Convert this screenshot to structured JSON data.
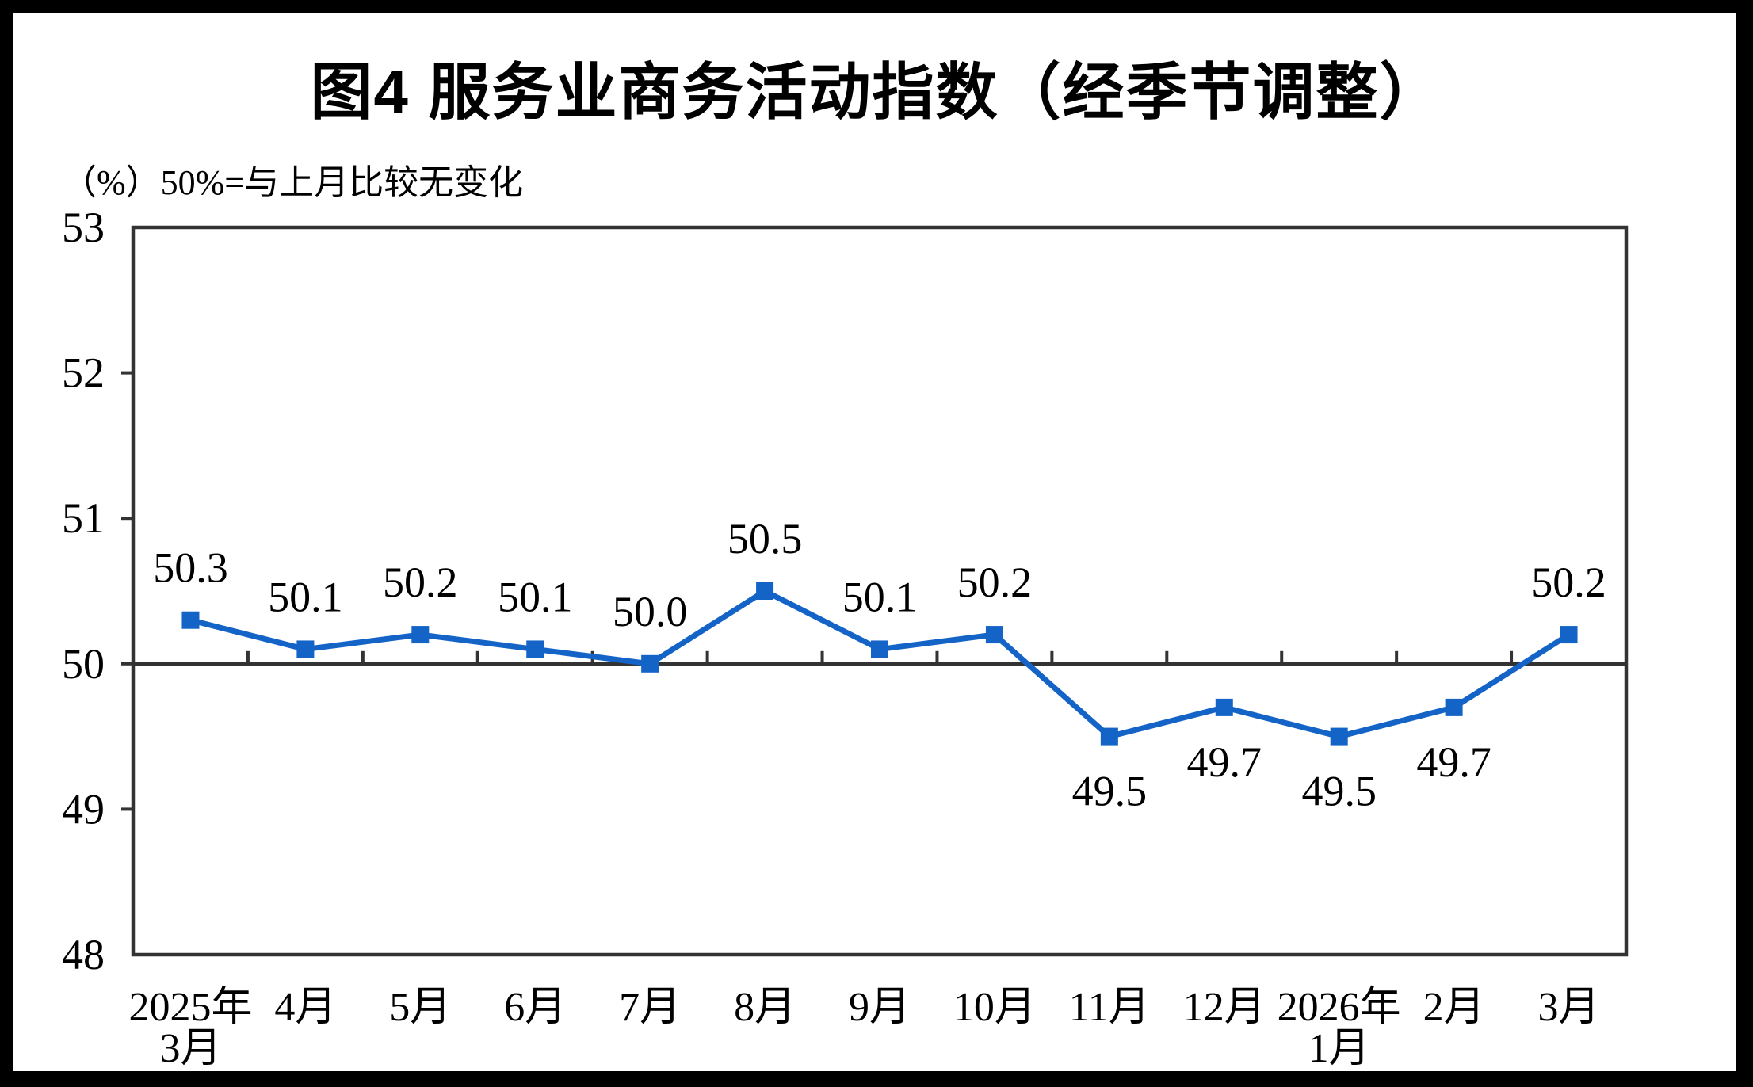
{
  "chart_data": {
    "type": "line",
    "title": "图4  服务业商务活动指数（经季节调整）",
    "subtitle": "（%）50%=与上月比较无变化",
    "categories": [
      "2025年\n3月",
      "4月",
      "5月",
      "6月",
      "7月",
      "8月",
      "9月",
      "10月",
      "11月",
      "12月",
      "2026年\n1月",
      "2月",
      "3月"
    ],
    "values": [
      50.3,
      50.1,
      50.2,
      50.1,
      50.0,
      50.5,
      50.1,
      50.2,
      49.5,
      49.7,
      49.5,
      49.7,
      50.2
    ],
    "data_labels": [
      "50.3",
      "50.1",
      "50.2",
      "50.1",
      "50.0",
      "50.5",
      "50.1",
      "50.2",
      "49.5",
      "49.7",
      "49.5",
      "49.7",
      "50.2"
    ],
    "ylim": [
      48,
      53
    ],
    "yticks": [
      48,
      49,
      50,
      51,
      52,
      53
    ],
    "baseline_value": 50,
    "grid": false,
    "legend": "none",
    "marker": "square",
    "colors": {
      "series": "#1464c8",
      "axis": "#333333",
      "text": "#000000",
      "background": "#ffffff",
      "outer_frame": "#000000"
    }
  }
}
